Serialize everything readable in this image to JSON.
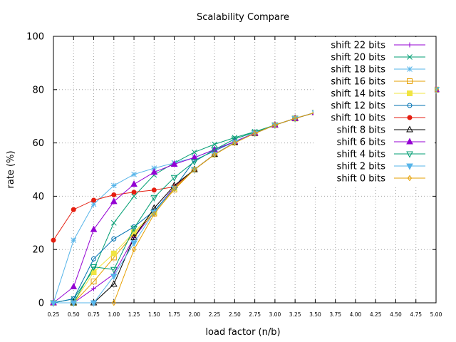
{
  "chart_data": {
    "type": "line",
    "title": "Scalability Compare",
    "xlabel": "load factor (n/b)",
    "ylabel": "rate (%)",
    "xlim": [
      0.25,
      5.0
    ],
    "ylim": [
      0,
      100
    ],
    "grid": true,
    "legend_position": "top-right",
    "x_ticks": [
      "0.25",
      "0.50",
      "0.75",
      "1.00",
      "1.25",
      "1.50",
      "1.75",
      "2.00",
      "2.25",
      "2.50",
      "2.75",
      "3.00",
      "3.25",
      "3.50",
      "3.75",
      "4.00",
      "4.25",
      "4.50",
      "4.75",
      "5.00"
    ],
    "y_ticks": [
      "0",
      "20",
      "40",
      "60",
      "80",
      "100"
    ],
    "x": [
      0.25,
      0.5,
      0.75,
      1.0,
      1.25,
      1.5,
      1.75,
      2.0,
      2.25,
      2.5,
      2.75,
      3.0,
      3.25,
      3.5,
      3.75,
      4.0,
      4.25,
      4.5,
      4.75,
      5.0
    ],
    "series": [
      {
        "name": "shift 22 bits",
        "color": "#9400d3",
        "marker": "plus",
        "values": [
          0,
          0,
          5.3,
          10.8,
          24.5,
          34.2,
          43.5,
          50,
          55.7,
          60.2,
          63.6,
          66.7,
          69.2,
          71.4,
          73.3,
          75,
          76.5,
          77.8,
          78.9,
          80
        ]
      },
      {
        "name": "shift 20 bits",
        "color": "#009e73",
        "marker": "cross",
        "values": [
          0,
          1.5,
          12.5,
          30.0,
          40.0,
          48.0,
          52.5,
          56.5,
          59.5,
          62.0,
          64.2,
          66.7,
          69.2,
          71.4,
          73.3,
          75,
          76.5,
          77.8,
          78.9,
          80
        ]
      },
      {
        "name": "shift 18 bits",
        "color": "#56b4e9",
        "marker": "star",
        "values": [
          0,
          23.5,
          37.0,
          44.0,
          48.2,
          50.5,
          52.5,
          54.5,
          57.5,
          60.5,
          63.7,
          66.7,
          69.2,
          71.4,
          73.3,
          75,
          76.5,
          77.8,
          78.9,
          80
        ]
      },
      {
        "name": "shift 16 bits",
        "color": "#e69f00",
        "marker": "box",
        "values": [
          0,
          0,
          8.0,
          17.0,
          26.0,
          33.5,
          42.5,
          50,
          55.7,
          60.2,
          63.6,
          66.7,
          69.2,
          71.4,
          73.3,
          75,
          76.5,
          77.8,
          78.9,
          80
        ]
      },
      {
        "name": "shift 14 bits",
        "color": "#f0e442",
        "marker": "box-filled",
        "values": [
          0,
          0,
          11.5,
          18.5,
          26.5,
          34.0,
          43.0,
          50,
          55.7,
          60.2,
          63.6,
          66.7,
          69.2,
          71.4,
          73.3,
          75,
          76.5,
          77.8,
          78.9,
          80
        ]
      },
      {
        "name": "shift 12 bits",
        "color": "#0072b2",
        "marker": "circle",
        "values": [
          0,
          1.5,
          16.5,
          24.0,
          28.5,
          34.5,
          43.0,
          53.5,
          57.0,
          60.5,
          63.7,
          66.7,
          69.2,
          71.4,
          73.3,
          75,
          76.5,
          77.8,
          78.9,
          80
        ]
      },
      {
        "name": "shift 10 bits",
        "color": "#e51e10",
        "marker": "circle-filled",
        "values": [
          23.5,
          35.0,
          38.5,
          40.5,
          41.5,
          42.3,
          43.5,
          50,
          55.7,
          60.2,
          63.6,
          66.7,
          69.2,
          71.4,
          73.3,
          75,
          76.5,
          77.8,
          78.9,
          80
        ]
      },
      {
        "name": "shift 8 bits",
        "color": "#000000",
        "marker": "triangle",
        "values": [
          0,
          0,
          0,
          7.0,
          24.5,
          35.5,
          44.0,
          50,
          55.7,
          60.2,
          63.6,
          66.7,
          69.2,
          71.4,
          73.3,
          75,
          76.5,
          77.8,
          78.9,
          80
        ]
      },
      {
        "name": "shift 6 bits",
        "color": "#9400d3",
        "marker": "triangle-filled",
        "values": [
          0,
          6.0,
          27.5,
          38.0,
          44.5,
          49.0,
          52.0,
          54.5,
          57.5,
          60.5,
          63.7,
          66.7,
          69.2,
          71.4,
          73.3,
          75,
          76.5,
          77.8,
          78.9,
          80
        ]
      },
      {
        "name": "shift 4 bits",
        "color": "#009e73",
        "marker": "triangle-down",
        "values": [
          0,
          0,
          13.5,
          12.5,
          28.0,
          39.5,
          47.0,
          53.0,
          57.5,
          61.5,
          64.0,
          66.7,
          69.2,
          71.4,
          73.3,
          75,
          76.5,
          77.8,
          78.9,
          80
        ]
      },
      {
        "name": "shift 2 bits",
        "color": "#56b4e9",
        "marker": "triangle-down-filled",
        "values": [
          0,
          0,
          0,
          10.0,
          22.5,
          34.0,
          43.0,
          50,
          55.7,
          60.2,
          63.6,
          66.7,
          69.2,
          71.4,
          73.3,
          75,
          76.5,
          77.8,
          78.9,
          80
        ]
      },
      {
        "name": "shift 0 bits",
        "color": "#e69f00",
        "marker": "diamond",
        "values": [
          null,
          null,
          null,
          0,
          20.0,
          33.3,
          42.9,
          50,
          55.6,
          60.0,
          63.6,
          66.7,
          69.2,
          71.4,
          73.3,
          75,
          76.5,
          77.8,
          78.9,
          80
        ]
      }
    ]
  }
}
